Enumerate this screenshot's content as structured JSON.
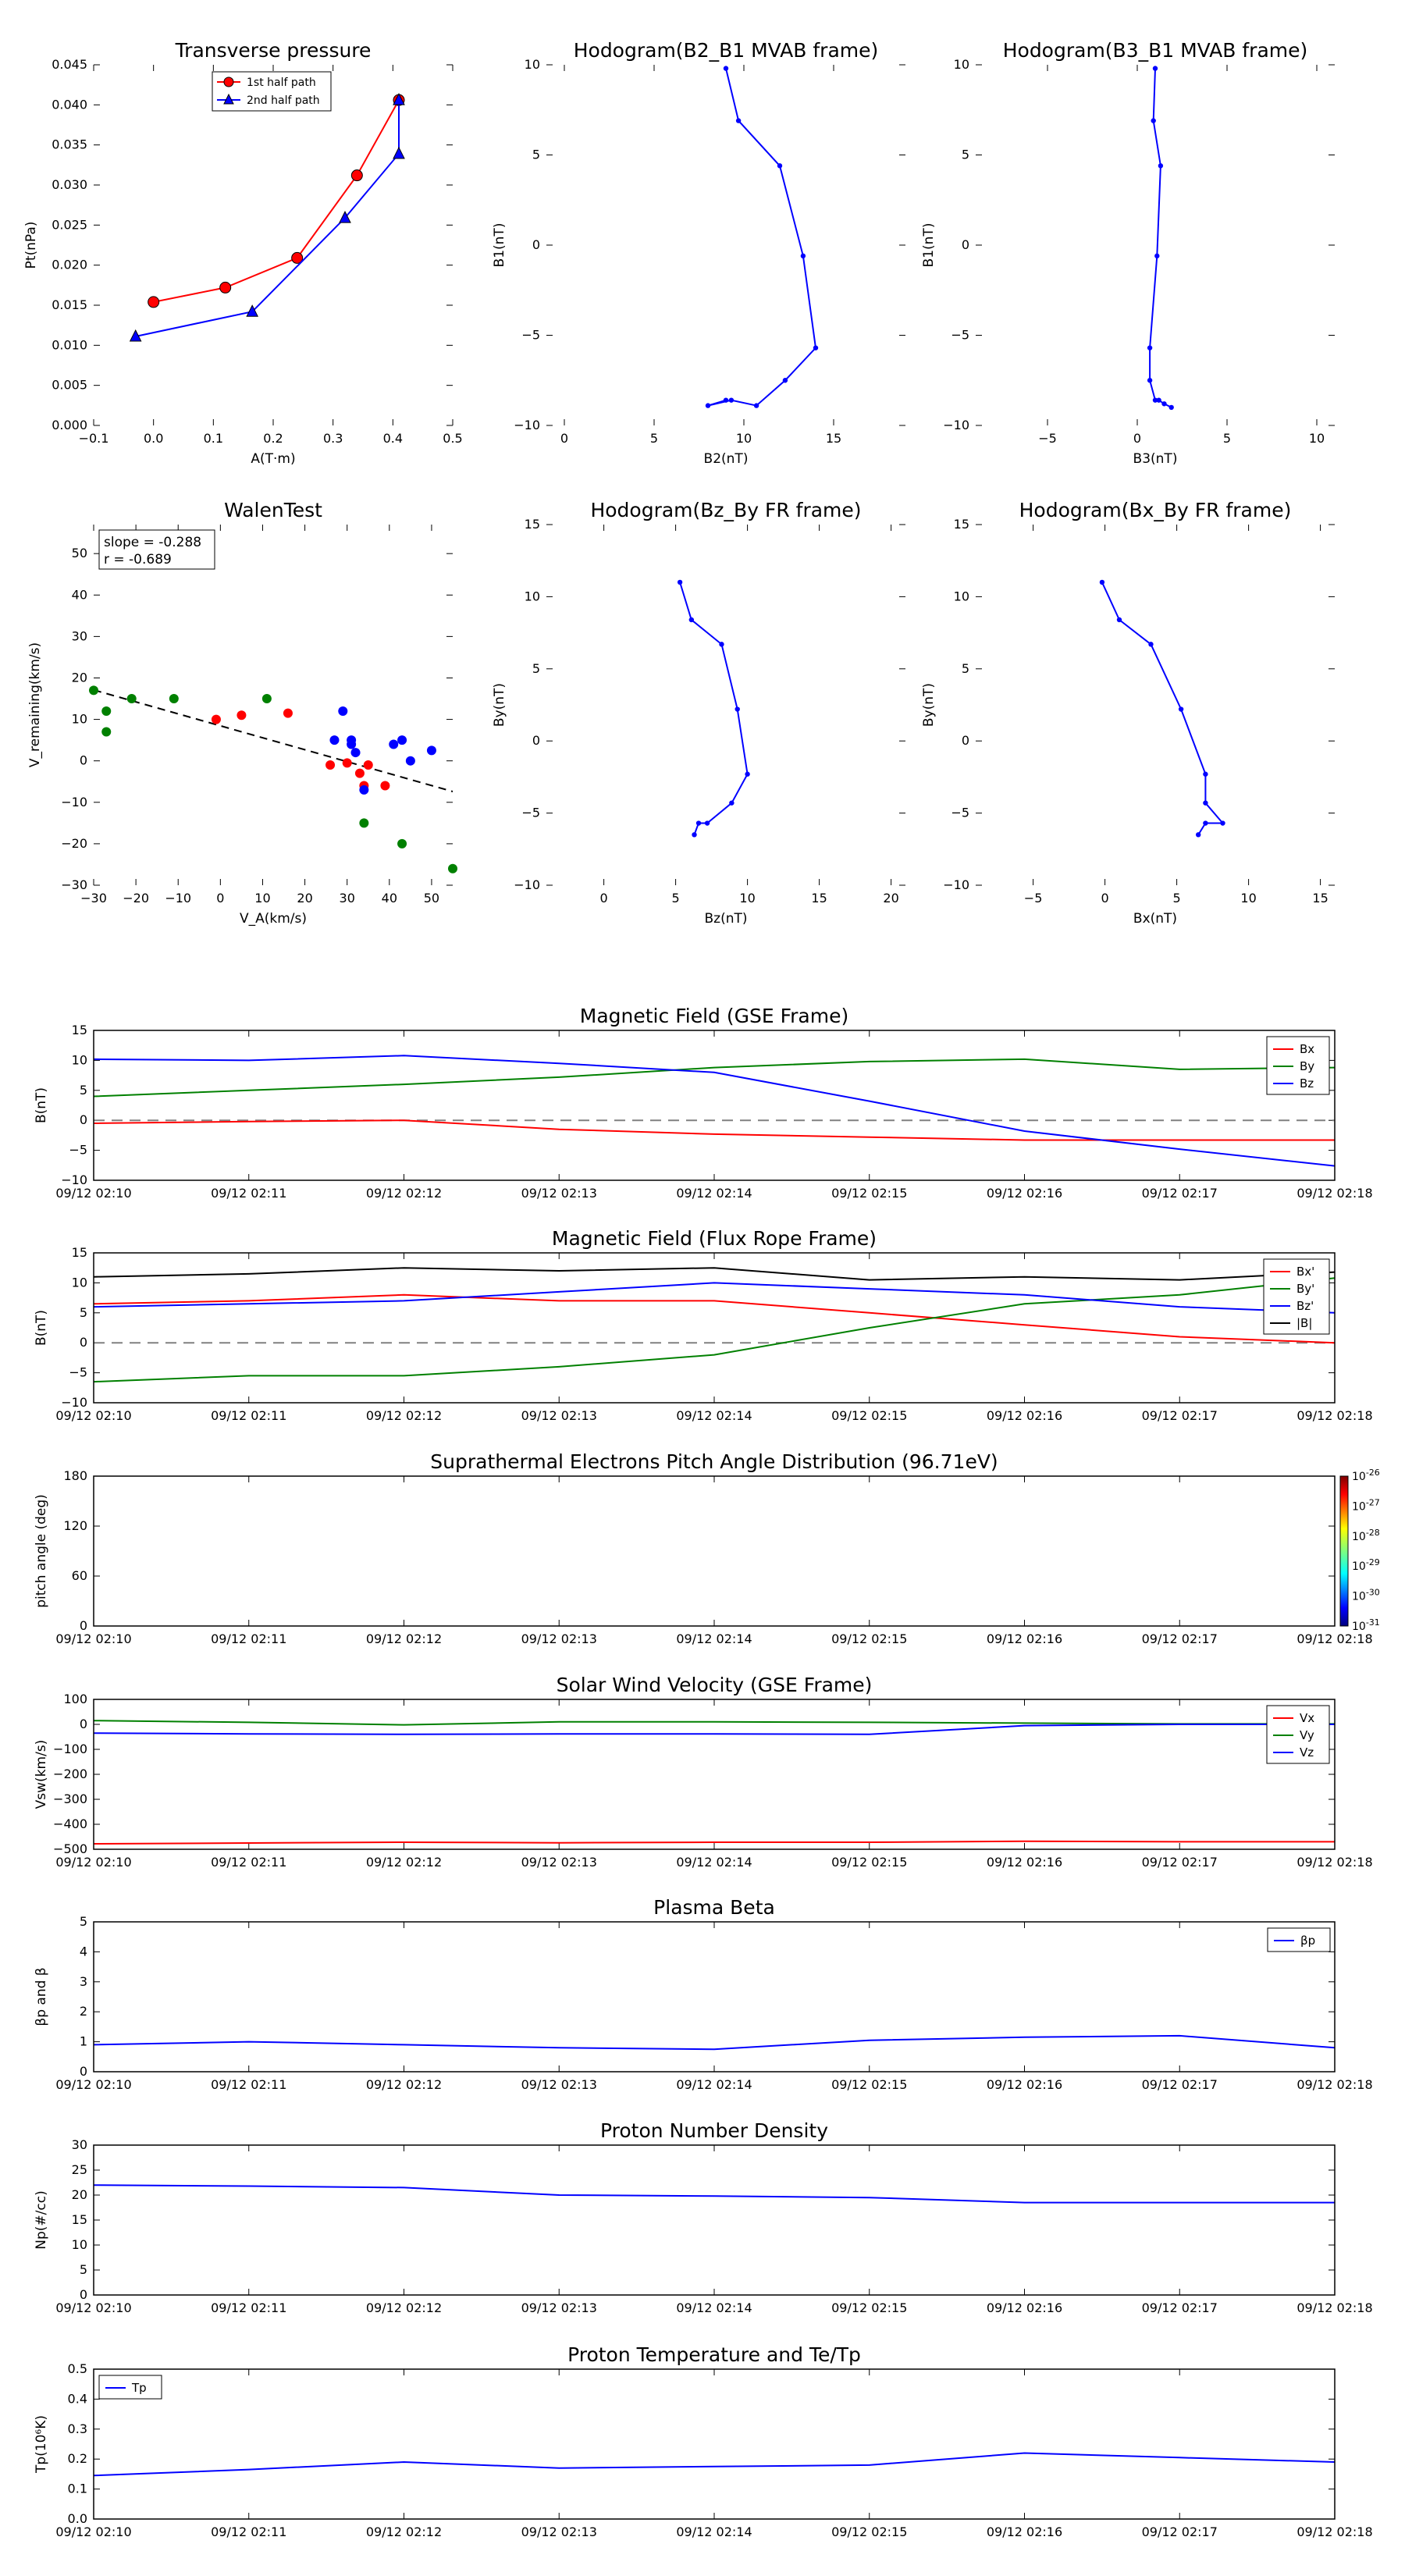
{
  "figure": {
    "background": "#ffffff"
  },
  "colors": {
    "red": "#ff0000",
    "blue": "#0000ff",
    "green": "#008000",
    "black": "#000000",
    "gray": "#808080"
  },
  "panels": {
    "tp": {
      "title": "Transverse pressure",
      "xlabel": "A(T·m)",
      "ylabel": "Pt(nPa)",
      "xticks": [
        "−0.1",
        "0.0",
        "0.1",
        "0.2",
        "0.3",
        "0.4",
        "0.5"
      ],
      "yticks": [
        "0.000",
        "0.005",
        "0.010",
        "0.015",
        "0.020",
        "0.025",
        "0.030",
        "0.035",
        "0.040",
        "0.045"
      ],
      "legend": [
        "1st half path",
        "2nd half path"
      ]
    },
    "h1": {
      "title": "Hodogram(B2_B1 MVAB frame)",
      "xlabel": "B2(nT)",
      "ylabel": "B1(nT)",
      "xticks": [
        "0",
        "5",
        "10",
        "15"
      ],
      "yticks": [
        "−10",
        "−5",
        "0",
        "5",
        "10"
      ]
    },
    "h2": {
      "title": "Hodogram(B3_B1 MVAB frame)",
      "xlabel": "B3(nT)",
      "ylabel": "B1(nT)",
      "xticks": [
        "−5",
        "0",
        "5",
        "10"
      ],
      "yticks": [
        "−10",
        "−5",
        "0",
        "5",
        "10"
      ]
    },
    "walen": {
      "title": "WalenTest",
      "xlabel": "V_A(km/s)",
      "ylabel": "V_remaining(km/s)",
      "xticks": [
        "−30",
        "−20",
        "−10",
        "0",
        "10",
        "20",
        "30",
        "40",
        "50"
      ],
      "yticks": [
        "−30",
        "−20",
        "−10",
        "0",
        "10",
        "20",
        "30",
        "40",
        "50"
      ],
      "slope_text": "slope = -0.288",
      "r_text": "r = -0.689"
    },
    "h3": {
      "title": "Hodogram(Bz_By FR frame)",
      "xlabel": "Bz(nT)",
      "ylabel": "By(nT)",
      "xticks": [
        "0",
        "5",
        "10",
        "15",
        "20"
      ],
      "yticks": [
        "−10",
        "−5",
        "0",
        "5",
        "10",
        "15"
      ]
    },
    "h4": {
      "title": "Hodogram(Bx_By FR frame)",
      "xlabel": "Bx(nT)",
      "ylabel": "By(nT)",
      "xticks": [
        "−5",
        "0",
        "5",
        "10",
        "15"
      ],
      "yticks": [
        "−10",
        "−5",
        "0",
        "5",
        "10",
        "15"
      ]
    },
    "mfgse": {
      "title": "Magnetic Field (GSE Frame)",
      "ylabel": "B(nT)",
      "legend": [
        "Bx",
        "By",
        "Bz"
      ],
      "yticks": [
        "−10",
        "−5",
        "0",
        "5",
        "10",
        "15"
      ]
    },
    "mffr": {
      "title": "Magnetic Field (Flux Rope Frame)",
      "ylabel": "B(nT)",
      "legend": [
        "Bx'",
        "By'",
        "Bz'",
        "|B|"
      ],
      "yticks": [
        "−10",
        "−5",
        "0",
        "5",
        "10",
        "15"
      ]
    },
    "pad": {
      "title": "Suprathermal Electrons Pitch Angle Distribution (96.71eV)",
      "ylabel": "pitch angle (deg)",
      "yticks": [
        "0",
        "60",
        "120",
        "180"
      ],
      "cbar_labels": [
        "10^-26",
        "10^-27",
        "10^-28",
        "10^-29",
        "10^-30",
        "10^-31"
      ]
    },
    "vsw": {
      "title": "Solar Wind Velocity (GSE Frame)",
      "ylabel": "Vsw(km/s)",
      "legend": [
        "Vx",
        "Vy",
        "Vz"
      ],
      "yticks": [
        "−500",
        "−400",
        "−300",
        "−200",
        "−100",
        "0",
        "100"
      ]
    },
    "beta": {
      "title": "Plasma Beta",
      "ylabel": "βp and β",
      "legend": [
        "βp"
      ],
      "yticks": [
        "0",
        "1",
        "2",
        "3",
        "4",
        "5"
      ]
    },
    "np": {
      "title": "Proton Number Density",
      "ylabel": "Np(#/cc)",
      "yticks": [
        "0",
        "5",
        "10",
        "15",
        "20",
        "25",
        "30"
      ]
    },
    "tpr": {
      "title": "Proton Temperature and Te/Tp",
      "ylabel": "Tp(10⁶K)",
      "legend": [
        "Tp"
      ],
      "yticks": [
        "0.0",
        "0.1",
        "0.2",
        "0.3",
        "0.4",
        "0.5"
      ]
    },
    "time_ticks": [
      "09/12 02:10",
      "09/12 02:11",
      "09/12 02:12",
      "09/12 02:13",
      "09/12 02:14",
      "09/12 02:15",
      "09/12 02:16",
      "09/12 02:17",
      "09/12 02:18"
    ]
  },
  "chart_data": [
    {
      "type": "line",
      "title": "Transverse pressure",
      "xlabel": "A(T·m)",
      "ylabel": "Pt(nPa)",
      "xlim": [
        -0.1,
        0.5
      ],
      "ylim": [
        0,
        0.045
      ],
      "series": [
        {
          "name": "1st half path",
          "x": [
            0.0,
            0.12,
            0.24,
            0.34,
            0.41
          ],
          "y": [
            0.0154,
            0.0172,
            0.0209,
            0.0312,
            0.0406
          ]
        },
        {
          "name": "2nd half path",
          "x": [
            -0.03,
            0.165,
            0.32,
            0.41,
            0.41
          ],
          "y": [
            0.0111,
            0.0142,
            0.0259,
            0.0339,
            0.0406
          ]
        }
      ]
    },
    {
      "type": "line",
      "title": "Hodogram(B2_B1 MVAB frame)",
      "xlabel": "B2(nT)",
      "ylabel": "B1(nT)",
      "xlim": [
        -1,
        19
      ],
      "ylim": [
        -10,
        10
      ],
      "series": [
        {
          "x": [
            9.0,
            9.7,
            12.0,
            13.3,
            14.0,
            12.3,
            10.7,
            9.3,
            8.0,
            9.0
          ],
          "y": [
            9.8,
            6.9,
            4.4,
            -0.6,
            -5.7,
            -7.5,
            -8.9,
            -8.6,
            -8.9,
            -8.6
          ]
        }
      ]
    },
    {
      "type": "line",
      "title": "Hodogram(B3_B1 MVAB frame)",
      "xlabel": "B3(nT)",
      "ylabel": "B1(nT)",
      "xlim": [
        -9,
        11
      ],
      "ylim": [
        -10,
        10
      ],
      "series": [
        {
          "x": [
            1.0,
            0.9,
            1.3,
            1.1,
            0.7,
            0.7,
            1.0,
            1.2,
            1.5,
            1.9
          ],
          "y": [
            9.8,
            6.9,
            4.4,
            -0.6,
            -5.7,
            -7.5,
            -8.6,
            -8.6,
            -8.8,
            -9.0
          ]
        }
      ]
    },
    {
      "type": "scatter",
      "title": "WalenTest",
      "xlabel": "V_A(km/s)",
      "ylabel": "V_remaining(km/s)",
      "xlim": [
        -30,
        55
      ],
      "ylim": [
        -30,
        57
      ],
      "slope": -0.288,
      "r": -0.689,
      "series": [
        {
          "color": "green",
          "x": [
            -30,
            -27,
            -27,
            -21,
            -11,
            11,
            34,
            43,
            55
          ],
          "y": [
            17,
            12,
            7,
            15,
            15,
            15,
            -15,
            -20,
            -26
          ]
        },
        {
          "color": "red",
          "x": [
            -1,
            5,
            16,
            26,
            30,
            33,
            34,
            35,
            39
          ],
          "y": [
            10,
            11,
            11.5,
            -1,
            -0.5,
            -3,
            -6,
            -1,
            -6
          ]
        },
        {
          "color": "blue",
          "x": [
            27,
            29,
            31,
            31,
            32,
            34,
            41,
            43,
            45,
            50
          ],
          "y": [
            5,
            12,
            5,
            4,
            2,
            -7,
            4,
            5,
            0,
            2.5
          ]
        }
      ],
      "fit_line": {
        "x": [
          -30,
          55
        ],
        "y": [
          17.1,
          -7.4
        ]
      }
    },
    {
      "type": "line",
      "title": "Hodogram(Bz_By FR frame)",
      "xlabel": "Bz(nT)",
      "ylabel": "By(nT)",
      "xlim": [
        -4,
        21
      ],
      "ylim": [
        -10,
        15
      ],
      "series": [
        {
          "x": [
            5.3,
            6.1,
            8.2,
            9.3,
            10.0,
            8.9,
            7.2,
            6.6,
            6.3
          ],
          "y": [
            11.0,
            8.4,
            6.7,
            2.2,
            -2.3,
            -4.3,
            -5.7,
            -5.7,
            -6.5
          ]
        }
      ]
    },
    {
      "type": "line",
      "title": "Hodogram(Bx_By FR frame)",
      "xlabel": "Bx(nT)",
      "ylabel": "By(nT)",
      "xlim": [
        -9,
        16
      ],
      "ylim": [
        -10,
        15
      ],
      "series": [
        {
          "x": [
            -0.2,
            1.0,
            3.2,
            5.3,
            7.0,
            7.0,
            8.2,
            7.0,
            6.5
          ],
          "y": [
            11.0,
            8.4,
            6.7,
            2.2,
            -2.3,
            -4.3,
            -5.7,
            -5.7,
            -6.5
          ]
        }
      ]
    },
    {
      "type": "line",
      "title": "Magnetic Field (GSE Frame)",
      "ylabel": "B(nT)",
      "ylim": [
        -10,
        15
      ],
      "x": [
        "09/12 02:10",
        "09/12 02:11",
        "09/12 02:12",
        "09/12 02:13",
        "09/12 02:14",
        "09/12 02:15",
        "09/12 02:16",
        "09/12 02:17",
        "09/12 02:18"
      ],
      "series": [
        {
          "name": "Bx",
          "values": [
            -0.5,
            -0.2,
            0,
            -1.5,
            -2.3,
            -2.8,
            -3.3,
            -3.3,
            -3.3
          ]
        },
        {
          "name": "By",
          "values": [
            4,
            5,
            6,
            7.2,
            8.8,
            9.8,
            10.2,
            8.5,
            8.8
          ]
        },
        {
          "name": "Bz",
          "values": [
            10.2,
            10,
            10.8,
            9.5,
            8,
            3.2,
            -1.8,
            -4.8,
            -7.6
          ]
        }
      ]
    },
    {
      "type": "line",
      "title": "Magnetic Field (Flux Rope Frame)",
      "ylabel": "B(nT)",
      "ylim": [
        -10,
        15
      ],
      "x": [
        "09/12 02:10",
        "09/12 02:11",
        "09/12 02:12",
        "09/12 02:13",
        "09/12 02:14",
        "09/12 02:15",
        "09/12 02:16",
        "09/12 02:17",
        "09/12 02:18"
      ],
      "series": [
        {
          "name": "Bx'",
          "values": [
            6.5,
            7,
            8,
            7,
            7,
            5,
            3,
            1,
            0
          ]
        },
        {
          "name": "By'",
          "values": [
            -6.5,
            -5.5,
            -5.5,
            -4,
            -2,
            2.5,
            6.5,
            8,
            10.8
          ]
        },
        {
          "name": "Bz'",
          "values": [
            6,
            6.5,
            7,
            8.5,
            10,
            9,
            8,
            6,
            5
          ]
        },
        {
          "name": "|B|",
          "values": [
            11,
            11.5,
            12.5,
            12,
            12.5,
            10.5,
            11,
            10.5,
            11.8
          ]
        }
      ]
    },
    {
      "type": "heatmap",
      "title": "Suprathermal Electrons Pitch Angle Distribution (96.71eV)",
      "ylabel": "pitch angle (deg)",
      "ylim": [
        0,
        180
      ],
      "colorbar": [
        "10^-26",
        "10^-27",
        "10^-28",
        "10^-29",
        "10^-30",
        "10^-31"
      ]
    },
    {
      "type": "line",
      "title": "Solar Wind Velocity (GSE Frame)",
      "ylabel": "Vsw(km/s)",
      "ylim": [
        -500,
        100
      ],
      "x": [
        "09/12 02:10",
        "09/12 02:11",
        "09/12 02:12",
        "09/12 02:13",
        "09/12 02:14",
        "09/12 02:15",
        "09/12 02:16",
        "09/12 02:17",
        "09/12 02:18"
      ],
      "series": [
        {
          "name": "Vx",
          "values": [
            -478,
            -475,
            -472,
            -474,
            -472,
            -472,
            -468,
            -470,
            -470
          ]
        },
        {
          "name": "Vy",
          "values": [
            15,
            8,
            -2,
            10,
            10,
            8,
            5,
            2,
            2
          ]
        },
        {
          "name": "Vz",
          "values": [
            -35,
            -38,
            -40,
            -38,
            -38,
            -40,
            -5,
            0,
            0
          ]
        }
      ]
    },
    {
      "type": "line",
      "title": "Plasma Beta",
      "ylabel": "βp and β",
      "ylim": [
        0,
        5
      ],
      "x": [
        "09/12 02:10",
        "09/12 02:11",
        "09/12 02:12",
        "09/12 02:13",
        "09/12 02:14",
        "09/12 02:15",
        "09/12 02:16",
        "09/12 02:17",
        "09/12 02:18"
      ],
      "series": [
        {
          "name": "βp",
          "values": [
            0.9,
            1.0,
            0.9,
            0.8,
            0.75,
            1.05,
            1.15,
            1.2,
            0.8
          ]
        }
      ]
    },
    {
      "type": "line",
      "title": "Proton Number Density",
      "ylabel": "Np(#/cc)",
      "ylim": [
        0,
        30
      ],
      "x": [
        "09/12 02:10",
        "09/12 02:11",
        "09/12 02:12",
        "09/12 02:13",
        "09/12 02:14",
        "09/12 02:15",
        "09/12 02:16",
        "09/12 02:17",
        "09/12 02:18"
      ],
      "series": [
        {
          "values": [
            22,
            21.8,
            21.5,
            20,
            19.8,
            19.5,
            18.5,
            18.5,
            18.5
          ]
        }
      ]
    },
    {
      "type": "line",
      "title": "Proton Temperature and Te/Tp",
      "ylabel": "Tp(10⁶K)",
      "ylim": [
        0,
        0.5
      ],
      "x": [
        "09/12 02:10",
        "09/12 02:11",
        "09/12 02:12",
        "09/12 02:13",
        "09/12 02:14",
        "09/12 02:15",
        "09/12 02:16",
        "09/12 02:17",
        "09/12 02:18"
      ],
      "series": [
        {
          "name": "Tp",
          "values": [
            0.145,
            0.165,
            0.19,
            0.17,
            0.175,
            0.18,
            0.22,
            0.205,
            0.19
          ]
        }
      ]
    }
  ]
}
